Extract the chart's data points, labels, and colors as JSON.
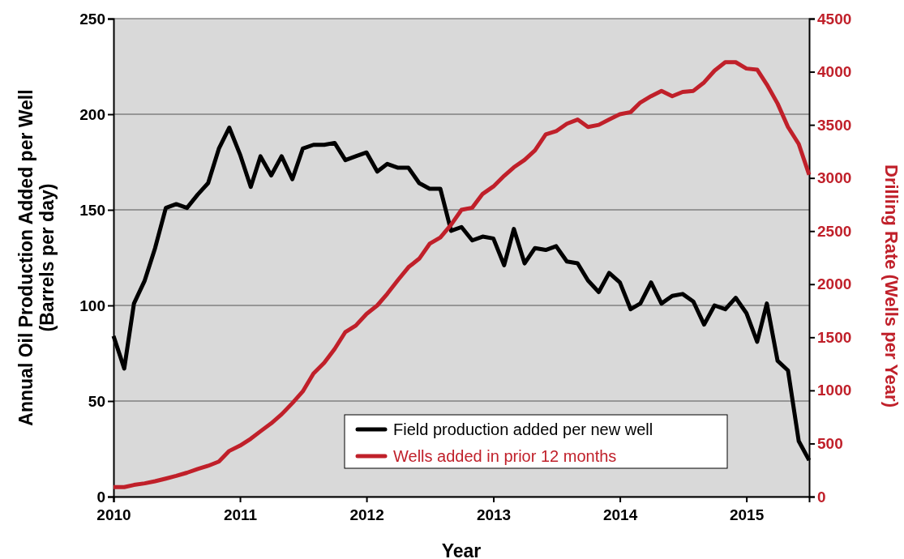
{
  "chart_data": {
    "type": "line",
    "xlabel": "Year",
    "ylabel": "Annual Oil Production Added per Well\n(Barrels per day)",
    "y2label": "Drilling Rate (Wells per Year)",
    "x": [
      "2010-01",
      "2010-02",
      "2010-03",
      "2010-04",
      "2010-05",
      "2010-06",
      "2010-07",
      "2010-08",
      "2010-09",
      "2010-10",
      "2010-11",
      "2010-12",
      "2011-01",
      "2011-02",
      "2011-03",
      "2011-04",
      "2011-05",
      "2011-06",
      "2011-07",
      "2011-08",
      "2011-09",
      "2011-10",
      "2011-11",
      "2011-12",
      "2012-01",
      "2012-02",
      "2012-03",
      "2012-04",
      "2012-05",
      "2012-06",
      "2012-07",
      "2012-08",
      "2012-09",
      "2012-10",
      "2012-11",
      "2012-12",
      "2013-01",
      "2013-02",
      "2013-03",
      "2013-04",
      "2013-05",
      "2013-06",
      "2013-07",
      "2013-08",
      "2013-09",
      "2013-10",
      "2013-11",
      "2013-12",
      "2014-01",
      "2014-02",
      "2014-03",
      "2014-04",
      "2014-05",
      "2014-06",
      "2014-07",
      "2014-08",
      "2014-09",
      "2014-10",
      "2014-11",
      "2014-12",
      "2015-01",
      "2015-02",
      "2015-03",
      "2015-04",
      "2015-05",
      "2015-06",
      "2015-07"
    ],
    "series": [
      {
        "name": "Field production added per new well",
        "color": "#000000",
        "values": [
          84,
          67,
          101,
          113,
          130,
          151,
          153,
          151,
          158,
          164,
          182,
          193,
          179,
          162,
          178,
          168,
          178,
          166,
          182,
          184,
          184,
          185,
          176,
          178,
          180,
          170,
          174,
          172,
          172,
          164,
          161,
          161,
          139,
          141,
          134,
          136,
          135,
          121,
          140,
          122,
          130,
          129,
          131,
          123,
          122,
          113,
          107,
          117,
          112,
          98,
          101,
          112,
          101,
          105,
          106,
          102,
          90,
          100,
          98,
          104,
          96,
          81,
          101,
          71,
          66,
          29,
          19
        ]
      },
      {
        "name": "Wells added in prior 12 months",
        "color": "#c0202a",
        "axis": "y2",
        "values": [
          90,
          90,
          110,
          125,
          145,
          170,
          195,
          225,
          260,
          290,
          330,
          430,
          480,
          545,
          615,
          690,
          775,
          880,
          990,
          1160,
          1260,
          1390,
          1550,
          1610,
          1720,
          1800,
          1910,
          2040,
          2160,
          2240,
          2380,
          2440,
          2560,
          2700,
          2720,
          2850,
          2920,
          3020,
          3100,
          3170,
          3260,
          3410,
          3440,
          3510,
          3550,
          3480,
          3500,
          3550,
          3600,
          3620,
          3710,
          3770,
          3820,
          3770,
          3810,
          3820,
          3900,
          4010,
          4090,
          4090,
          4030,
          4020,
          3880,
          3700,
          3480,
          3320,
          3030
        ]
      }
    ],
    "xlim": [
      "2010-01",
      "2015-07"
    ],
    "xticks": [
      "2010",
      "2011",
      "2012",
      "2013",
      "2014",
      "2015"
    ],
    "ylim": [
      0,
      250
    ],
    "yticks": [
      0,
      50,
      100,
      150,
      200,
      250
    ],
    "y2lim": [
      0,
      4500
    ],
    "y2ticks": [
      0,
      500,
      1000,
      1500,
      2000,
      2500,
      3000,
      3500,
      4000,
      4500
    ],
    "grid": "y",
    "legend": "bottom right",
    "marker": "none",
    "line_style": "solid"
  }
}
